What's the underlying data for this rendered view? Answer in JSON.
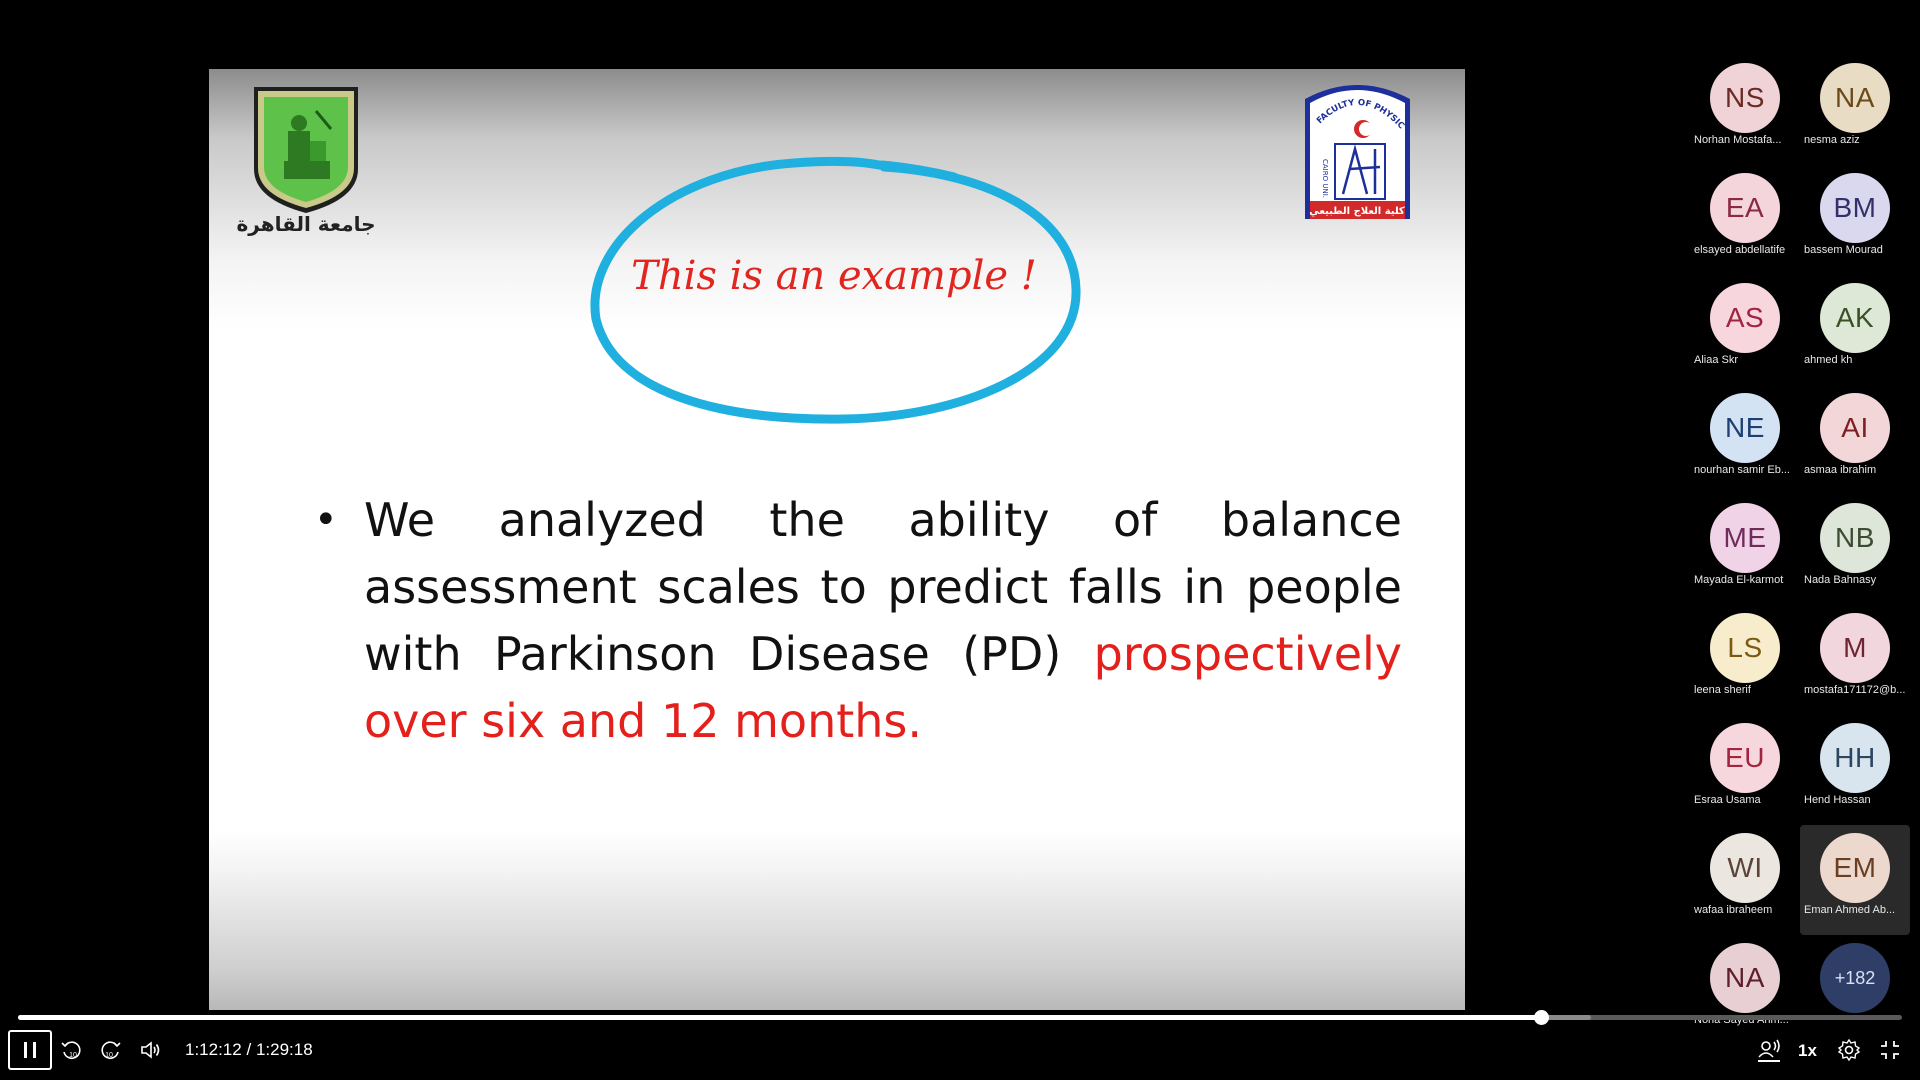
{
  "slide": {
    "handwritten_note": "This is an example !",
    "bullet_text": "We analyzed the ability of balance assessment scales to predict falls in people with Parkinson Disease (PD)",
    "bullet_highlight": "prospectively over six and 12 months.",
    "colors": {
      "highlight": "#e3201b",
      "ellipse": "#1fb0e0",
      "note": "#e0261f"
    },
    "logo_left_text": "جامعة القاهرة",
    "logo_right_text_top": "FACULTY OF PHYSICAL THERAPY",
    "logo_right_text_side": "CAIRO UNI.",
    "logo_right_text_bottom": "كلية العلاج الطبيعي"
  },
  "participants": [
    {
      "initials": "NS",
      "name": "Norhan Mostafa...",
      "bg": "#efd3d6",
      "fg": "#6b2b25"
    },
    {
      "initials": "NA",
      "name": "nesma aziz",
      "bg": "#e8dcc5",
      "fg": "#6b4a1a"
    },
    {
      "initials": "EA",
      "name": "elsayed abdellatife",
      "bg": "#f4d5dc",
      "fg": "#8a2a44"
    },
    {
      "initials": "BM",
      "name": "bassem Mourad",
      "bg": "#d9d8ef",
      "fg": "#34306b"
    },
    {
      "initials": "AS",
      "name": "Aliaa Skr",
      "bg": "#f7d6de",
      "fg": "#a0233f"
    },
    {
      "initials": "AK",
      "name": "ahmed kh",
      "bg": "#dde8d6",
      "fg": "#3a5128"
    },
    {
      "initials": "NE",
      "name": "nourhan samir Eb...",
      "bg": "#d4e3f4",
      "fg": "#1d3f74"
    },
    {
      "initials": "AI",
      "name": "asmaa ibrahim",
      "bg": "#f3d6d8",
      "fg": "#7c1f24"
    },
    {
      "initials": "ME",
      "name": "Mayada El-karmot",
      "bg": "#f0d3e6",
      "fg": "#6f2b5a"
    },
    {
      "initials": "NB",
      "name": "Nada Bahnasy",
      "bg": "#dde6d8",
      "fg": "#3c4d33"
    },
    {
      "initials": "LS",
      "name": "leena sherif",
      "bg": "#f7eccb",
      "fg": "#7c5a12"
    },
    {
      "initials": "M",
      "name": "mostafa171172@b...",
      "bg": "#f1d7dd",
      "fg": "#6e2431"
    },
    {
      "initials": "EU",
      "name": "Esraa Usama",
      "bg": "#f7d7de",
      "fg": "#a2243e"
    },
    {
      "initials": "HH",
      "name": "Hend Hassan",
      "bg": "#d8e4ee",
      "fg": "#2c4660"
    },
    {
      "initials": "WI",
      "name": "wafaa ibraheem",
      "bg": "#ece6e1",
      "fg": "#5a4438"
    },
    {
      "initials": "EM",
      "name": "Eman Ahmed Ab...",
      "bg": "#ecd8cc",
      "fg": "#6a3e22",
      "active": true
    },
    {
      "initials": "NA",
      "name": "Noha Sayed Ahm...",
      "bg": "#e7cfd3",
      "fg": "#5e1e2a"
    }
  ],
  "more_participants": "+182",
  "player": {
    "current_time": "1:12:12",
    "separator": "/",
    "duration": "1:29:18",
    "progress_fraction": 0.8085,
    "buffer_fraction": 0.835,
    "speed": "1x",
    "icons": [
      "pause-icon",
      "rewind-10-icon",
      "forward-10-icon",
      "volume-icon",
      "captions-icon",
      "settings-icon",
      "exit-fullscreen-icon"
    ]
  }
}
